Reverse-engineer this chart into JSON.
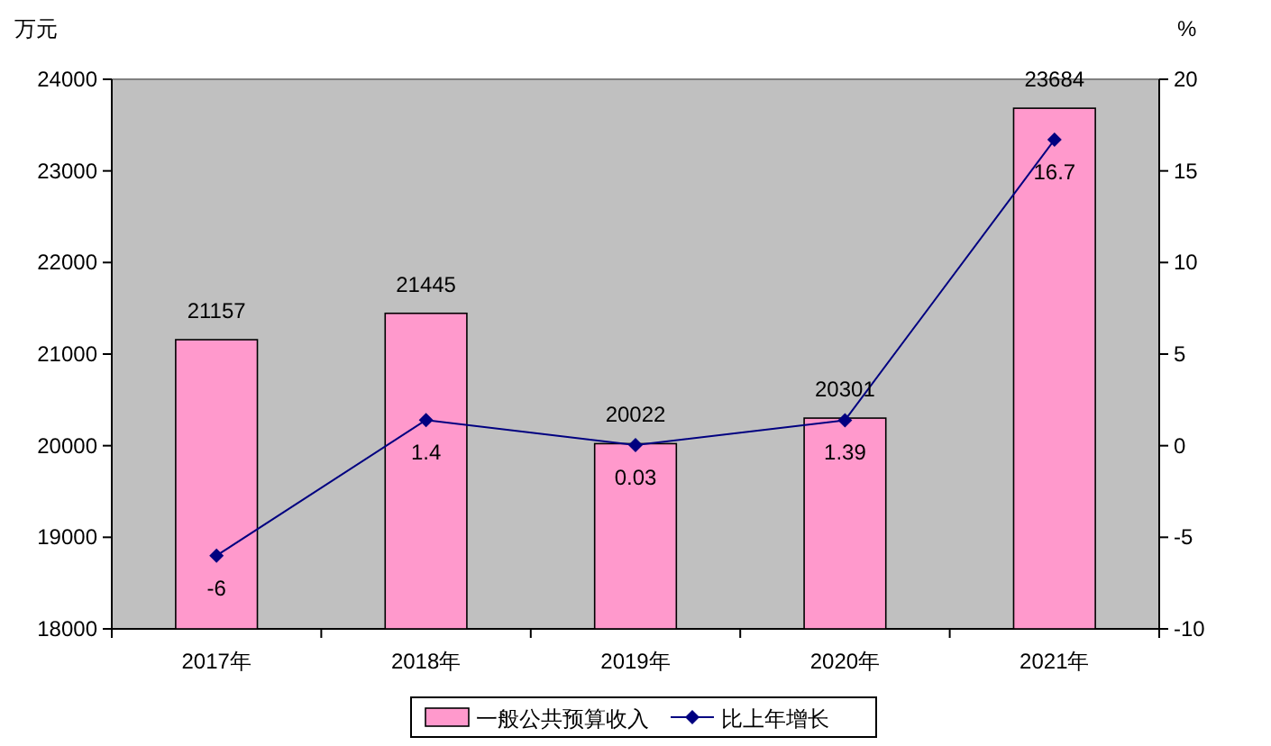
{
  "chart_data": {
    "type": "bar",
    "ylabel": "万元",
    "y2label": "%",
    "categories": [
      "2017年",
      "2018年",
      "2019年",
      "2020年",
      "2021年"
    ],
    "series": [
      {
        "name": "一般公共预算收入",
        "color": "#ff99cc",
        "values": [
          21157,
          21445,
          20022,
          20301,
          23684
        ]
      },
      {
        "name": "比上年增长",
        "type": "line",
        "axis": "y2",
        "color": "#000080",
        "marker": "diamond",
        "values": [
          -6,
          1.4,
          0.03,
          1.39,
          16.7
        ]
      }
    ],
    "ylim": [
      18000,
      24000
    ],
    "yticks": [
      18000,
      19000,
      20000,
      21000,
      22000,
      23000,
      24000
    ],
    "y2lim": [
      -10,
      20
    ],
    "y2ticks": [
      -10,
      -5,
      0,
      5,
      10,
      15,
      20
    ],
    "data_labels": true,
    "grid": false,
    "legend": "bottom"
  }
}
